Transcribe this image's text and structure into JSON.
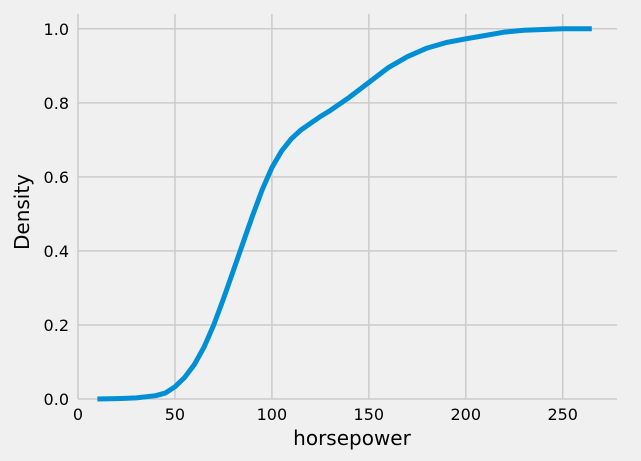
{
  "chart_data": {
    "type": "line",
    "title": "",
    "xlabel": "horsepower",
    "ylabel": "Density",
    "xlim": [
      0,
      278
    ],
    "ylim": [
      0,
      1.04
    ],
    "xticks": [
      0,
      50,
      100,
      150,
      200,
      250
    ],
    "xtick_labels": [
      "0",
      "50",
      "100",
      "150",
      "200",
      "250"
    ],
    "yticks": [
      0.0,
      0.2,
      0.4,
      0.6,
      0.8,
      1.0
    ],
    "ytick_labels": [
      "0.0",
      "0.2",
      "0.4",
      "0.6",
      "0.8",
      "1.0"
    ],
    "grid": true,
    "legend": "none",
    "colors": {
      "background": "#f0f0f0",
      "grid": "#cbcbcb",
      "line": "#008fd5"
    },
    "series": [
      {
        "x": [
          10,
          20,
          30,
          40,
          45,
          50,
          55,
          60,
          65,
          70,
          75,
          80,
          85,
          90,
          95,
          100,
          105,
          110,
          115,
          120,
          125,
          130,
          140,
          150,
          160,
          170,
          180,
          190,
          200,
          210,
          220,
          230,
          240,
          250,
          260,
          265
        ],
        "y": [
          0.0,
          0.001,
          0.003,
          0.009,
          0.016,
          0.033,
          0.058,
          0.093,
          0.14,
          0.2,
          0.27,
          0.345,
          0.42,
          0.495,
          0.565,
          0.625,
          0.67,
          0.703,
          0.727,
          0.745,
          0.763,
          0.779,
          0.815,
          0.855,
          0.895,
          0.925,
          0.948,
          0.963,
          0.973,
          0.982,
          0.991,
          0.996,
          0.998,
          1.0,
          1.0,
          1.0
        ]
      }
    ]
  }
}
